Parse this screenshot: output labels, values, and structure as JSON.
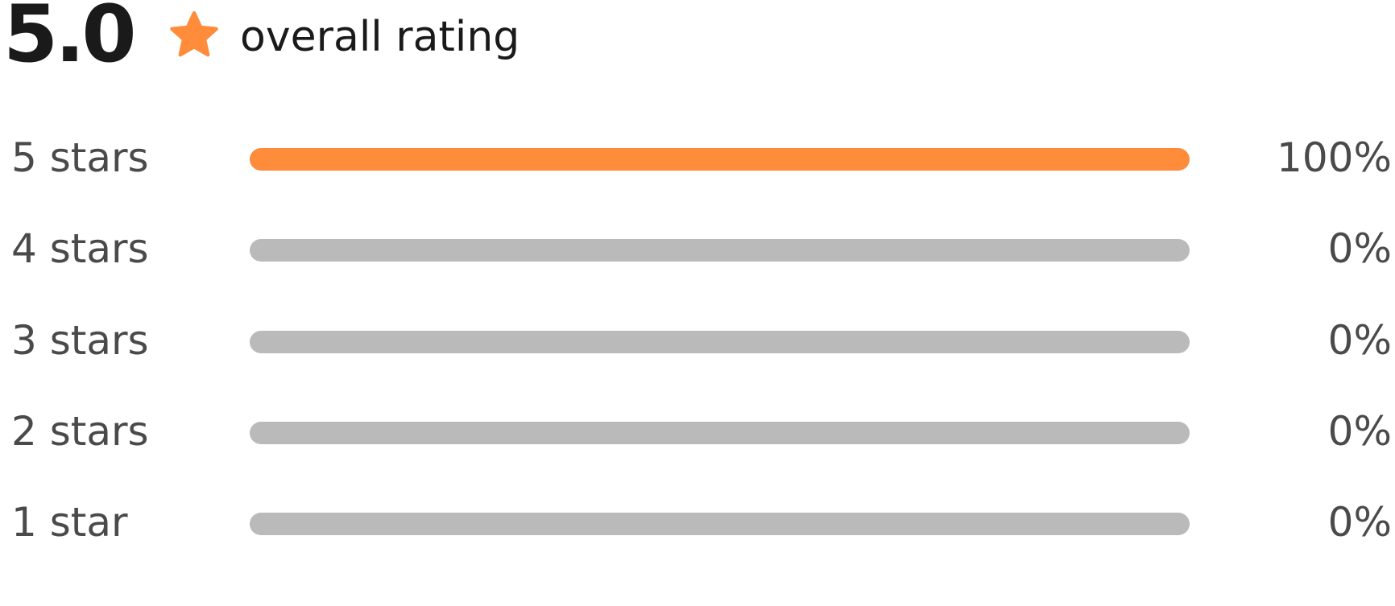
{
  "rating": {
    "score": "5.0",
    "label": "overall rating",
    "icon": "star-icon"
  },
  "colors": {
    "accent": "#ff8c3a",
    "track": "#bababa",
    "score_text": "#1a1a1a",
    "row_text": "#4a4a4a"
  },
  "breakdown": [
    {
      "label": "5 stars",
      "percent": "100%",
      "fraction": 1.0
    },
    {
      "label": "4 stars",
      "percent": "0%",
      "fraction": 0
    },
    {
      "label": "3 stars",
      "percent": "0%",
      "fraction": 0
    },
    {
      "label": "2 stars",
      "percent": "0%",
      "fraction": 0
    },
    {
      "label": "1 star",
      "percent": "0%",
      "fraction": 0
    }
  ]
}
